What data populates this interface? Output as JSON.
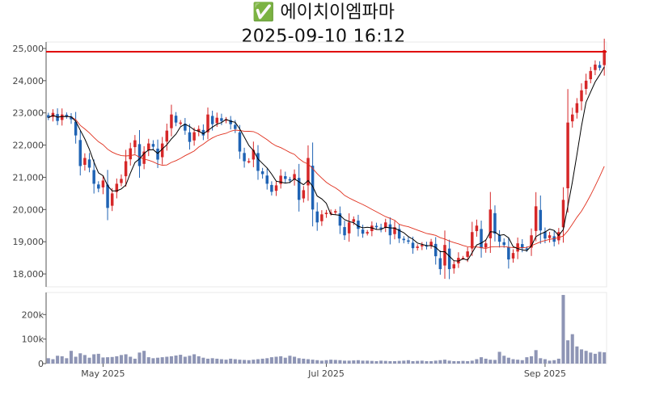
{
  "title": "✅ 에이치이엠파마",
  "subtitle": "2025-09-10 16:12",
  "chart_data": [
    {
      "type": "candlestick",
      "name": "price",
      "ylim": [
        17600,
        25200
      ],
      "y_ticks": [
        "25,000",
        "24,000",
        "23,000",
        "22,000",
        "21,000",
        "20,000",
        "19,000",
        "18,000"
      ],
      "y_tick_values": [
        25000,
        24000,
        23000,
        22000,
        21000,
        20000,
        19000,
        18000
      ],
      "reference_line": 24900,
      "x_ticks": [
        "May 2025",
        "Jul 2025",
        "Sep 2025"
      ],
      "x_tick_index": [
        12,
        61,
        109
      ],
      "up_color": "#d62728",
      "down_color": "#1f63b4",
      "ma_short_color": "#000000",
      "ma_long_color": "#e0301e",
      "ref_color": "#e00000",
      "closes": [
        22850,
        23000,
        22750,
        22950,
        22900,
        22800,
        22300,
        21350,
        21600,
        21300,
        20800,
        20650,
        20900,
        20050,
        20500,
        20800,
        20950,
        21500,
        21900,
        22150,
        21350,
        21800,
        22050,
        21950,
        21550,
        22050,
        22450,
        22950,
        22700,
        22700,
        22450,
        22100,
        22400,
        22500,
        22300,
        22950,
        22650,
        22850,
        22750,
        22800,
        22650,
        22500,
        21800,
        21500,
        21500,
        21850,
        21200,
        21100,
        20800,
        20550,
        20750,
        21050,
        20950,
        20900,
        21100,
        20300,
        20600,
        21600,
        20000,
        19600,
        19850,
        19900,
        19900,
        19950,
        19500,
        19200,
        19600,
        19700,
        19400,
        19250,
        19300,
        19500,
        19450,
        19400,
        19600,
        19200,
        19450,
        19100,
        19050,
        19000,
        18800,
        18850,
        18900,
        18850,
        19000,
        18550,
        18150,
        18900,
        18150,
        18300,
        18500,
        18500,
        18700,
        19300,
        19500,
        18800,
        18950,
        20000,
        19250,
        19000,
        18900,
        18450,
        18650,
        18950,
        18800,
        18750,
        19200,
        20100,
        19350,
        19100,
        19200,
        19000,
        19300,
        20300,
        22700,
        22950,
        23300,
        23700,
        24000,
        24300,
        24500,
        24400,
        24950
      ]
    },
    {
      "type": "bar",
      "name": "volume",
      "ylim": [
        0,
        290000
      ],
      "y_ticks": [
        "200k",
        "100k",
        "0"
      ],
      "y_tick_values": [
        200000,
        100000,
        0
      ],
      "bar_color": "#8e95b5",
      "values": [
        22000,
        18000,
        32000,
        30000,
        22000,
        52000,
        28000,
        42000,
        35000,
        24000,
        38000,
        40000,
        25000,
        26000,
        27000,
        30000,
        35000,
        38000,
        28000,
        20000,
        45000,
        52000,
        26000,
        22000,
        24000,
        26000,
        28000,
        30000,
        33000,
        36000,
        28000,
        32000,
        38000,
        30000,
        24000,
        20000,
        22000,
        20000,
        18000,
        16000,
        20000,
        18000,
        16000,
        15000,
        14000,
        16000,
        18000,
        20000,
        22000,
        26000,
        28000,
        30000,
        24000,
        32000,
        28000,
        22000,
        20000,
        18000,
        16000,
        14000,
        12000,
        14000,
        16000,
        15000,
        14000,
        12000,
        12000,
        13000,
        14000,
        12000,
        12000,
        11000,
        10000,
        12000,
        11000,
        10000,
        10000,
        11000,
        12000,
        14000,
        10000,
        11000,
        12000,
        10000,
        10000,
        12000,
        14000,
        16000,
        12000,
        10000,
        10000,
        11000,
        10000,
        12000,
        18000,
        26000,
        20000,
        16000,
        15000,
        48000,
        32000,
        24000,
        18000,
        16000,
        14000,
        26000,
        30000,
        55000,
        22000,
        18000,
        12000,
        14000,
        20000,
        280000,
        95000,
        120000,
        70000,
        58000,
        52000,
        45000,
        40000,
        48000,
        46000
      ]
    }
  ]
}
